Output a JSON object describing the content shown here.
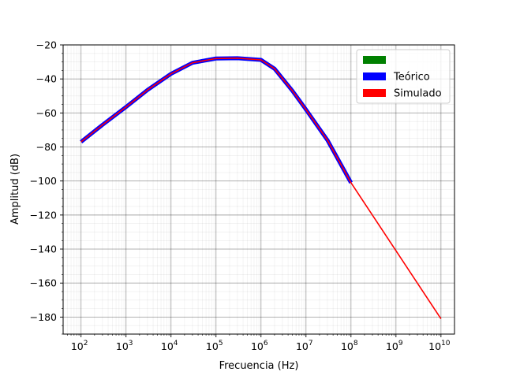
{
  "chart_data": {
    "type": "line",
    "title": "",
    "xlabel": "Frecuencia (Hz)",
    "ylabel": "Amplitud (dB)",
    "x_scale": "log",
    "xlim": [
      40,
      20000000000
    ],
    "ylim": [
      -190,
      -20
    ],
    "x_ticks": [
      {
        "value": 100,
        "mantissa": "10",
        "exp": "2"
      },
      {
        "value": 1000,
        "mantissa": "10",
        "exp": "3"
      },
      {
        "value": 10000,
        "mantissa": "10",
        "exp": "4"
      },
      {
        "value": 100000,
        "mantissa": "10",
        "exp": "5"
      },
      {
        "value": 1000000,
        "mantissa": "10",
        "exp": "6"
      },
      {
        "value": 10000000,
        "mantissa": "10",
        "exp": "7"
      },
      {
        "value": 100000000,
        "mantissa": "10",
        "exp": "8"
      },
      {
        "value": 1000000000,
        "mantissa": "10",
        "exp": "9"
      },
      {
        "value": 10000000000,
        "mantissa": "10",
        "exp": "10"
      }
    ],
    "y_ticks": [
      -20,
      -40,
      -60,
      -80,
      -100,
      -120,
      -140,
      -160,
      -180
    ],
    "y_tick_labels": [
      "−20",
      "−40",
      "−60",
      "−80",
      "−100",
      "−120",
      "−140",
      "−160",
      "−180"
    ],
    "grid": true,
    "legend": {
      "placement": "top-right",
      "entries": [
        {
          "label": "",
          "color": "#008000"
        },
        {
          "label": "Teórico",
          "color": "#0000ff"
        },
        {
          "label": "Simulado",
          "color": "#ff0000"
        }
      ]
    },
    "series": [
      {
        "name": "Teórico",
        "color": "#0000ff",
        "x": [
          100,
          300,
          1000,
          3000,
          10000,
          30000,
          100000,
          300000,
          1000000,
          2000000,
          5000000,
          10000000,
          30000000,
          100000000
        ],
        "y": [
          -77,
          -67,
          -56.5,
          -46.5,
          -37,
          -30.5,
          -28,
          -27.8,
          -28.8,
          -34,
          -47,
          -58,
          -76,
          -101
        ]
      },
      {
        "name": "Simulado",
        "color": "#ff0000",
        "x": [
          100,
          300,
          1000,
          3000,
          10000,
          30000,
          100000,
          300000,
          1000000,
          2000000,
          5000000,
          10000000,
          30000000,
          100000000,
          1000000000,
          10000000000
        ],
        "y": [
          -77,
          -67,
          -56.5,
          -46.5,
          -37,
          -30.5,
          -28,
          -27.8,
          -28.8,
          -34,
          -47,
          -58,
          -76,
          -101,
          -141,
          -181
        ]
      }
    ]
  }
}
